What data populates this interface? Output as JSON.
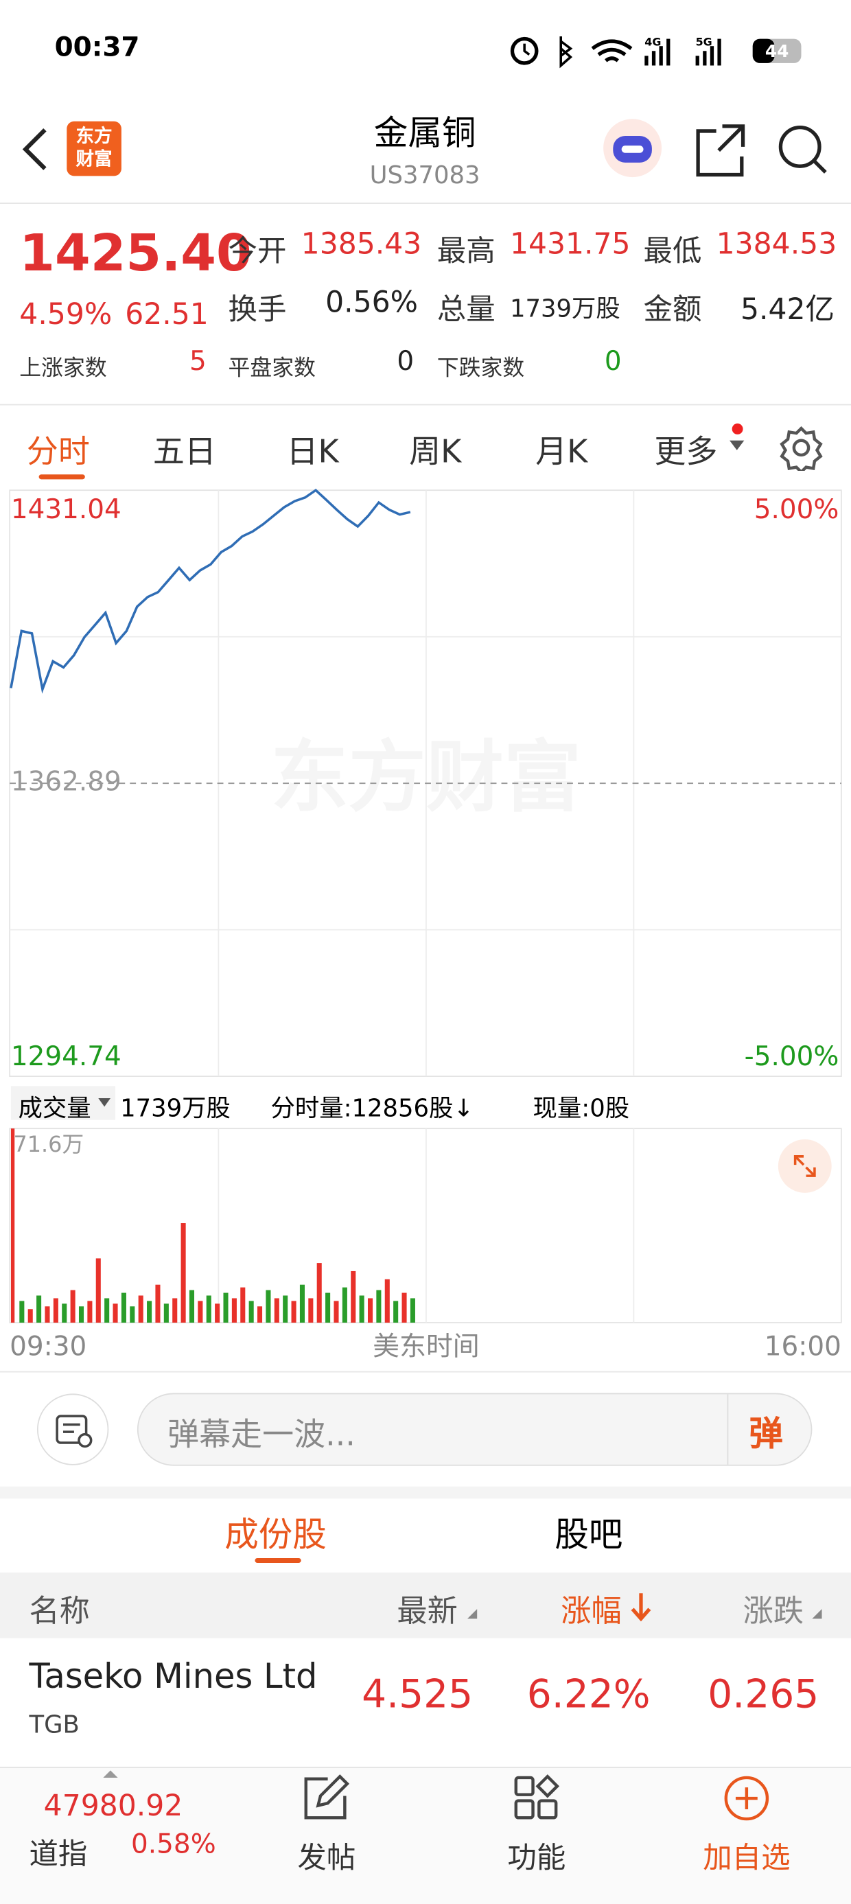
{
  "status_bar": {
    "time": "00:37",
    "battery": "44",
    "signal_labels": [
      "4G",
      "5G"
    ]
  },
  "header": {
    "logo": [
      "东方",
      "财富"
    ],
    "title": "金属铜",
    "code": "US37083"
  },
  "quote": {
    "price": "1425.40",
    "change_pct": "4.59%",
    "change": "62.51",
    "stats": [
      {
        "label": "今开",
        "value": "1385.43"
      },
      {
        "label": "最高",
        "value": "1431.75"
      },
      {
        "label": "最低",
        "value": "1384.53"
      },
      {
        "label": "换手",
        "value": "0.56%"
      },
      {
        "label": "总量",
        "value": "1739万股"
      },
      {
        "label": "金额",
        "value": "5.42亿"
      }
    ],
    "breadth": [
      {
        "label": "上涨家数",
        "value": "5"
      },
      {
        "label": "平盘家数",
        "value": "0"
      },
      {
        "label": "下跌家数",
        "value": "0"
      }
    ]
  },
  "tabs": [
    "分时",
    "五日",
    "日K",
    "周K",
    "月K",
    "更多"
  ],
  "chart_data": [
    {
      "type": "line",
      "color": "#2f6db5",
      "watermark": "东方财富",
      "values": [
        1385.04,
        1398.3,
        1397.74,
        1384.76,
        1391.25,
        1389.84,
        1392.66,
        1396.89,
        1399.72,
        1402.54,
        1395.48,
        1398.3,
        1403.95,
        1406.2,
        1407.33,
        1410.16,
        1412.98,
        1410.16,
        1412.4,
        1413.8,
        1416.65,
        1418.06,
        1420.3,
        1421.45,
        1423.14,
        1425.1,
        1427.1,
        1428.5,
        1429.35,
        1431.04,
        1428.8,
        1426.5,
        1424.3,
        1422.6,
        1425.1,
        1428.2,
        1426.5,
        1425.4,
        1425.96
      ],
      "ylim": [
        1294.74,
        1431.04
      ],
      "yticks": [
        1294.74,
        1362.89,
        1431.04
      ],
      "y2lim": [
        -5,
        5
      ],
      "y2ticks": [
        {
          "value": -5,
          "label": "-5.00%"
        },
        {
          "value": 5,
          "label": "5.00%"
        }
      ],
      "x_labels": [
        "09:30",
        "16:00"
      ],
      "x_title": "美东时间"
    },
    {
      "type": "bar",
      "title": "成交量",
      "total": "1739万股",
      "period_volume": "分时量:12856股↓",
      "current_volume": "现量:0股",
      "values": [
        71.6,
        8,
        5,
        10,
        6,
        9,
        7,
        12,
        6,
        8,
        23.7,
        9,
        7,
        11,
        6,
        10,
        8,
        14,
        7,
        9,
        36.7,
        12,
        8,
        10,
        7,
        11,
        9,
        13,
        8,
        6,
        12,
        9,
        10,
        8,
        14,
        9,
        22,
        11,
        8,
        13,
        19,
        10,
        9,
        12,
        16,
        8,
        11,
        9
      ],
      "colors": [
        "#e8312a",
        "#2a9d2a",
        "#e8312a",
        "#2a9d2a",
        "#e8312a",
        "#e8312a",
        "#2a9d2a",
        "#e8312a",
        "#2a9d2a",
        "#e8312a",
        "#e8312a",
        "#2a9d2a",
        "#e8312a",
        "#2a9d2a",
        "#2a9d2a",
        "#e8312a",
        "#2a9d2a",
        "#e8312a",
        "#2a9d2a",
        "#e8312a",
        "#e8312a",
        "#2a9d2a",
        "#e8312a",
        "#2a9d2a",
        "#e8312a",
        "#2a9d2a",
        "#e8312a",
        "#e8312a",
        "#2a9d2a",
        "#e8312a",
        "#2a9d2a",
        "#e8312a",
        "#2a9d2a",
        "#e8312a",
        "#2a9d2a",
        "#e8312a",
        "#e8312a",
        "#2a9d2a",
        "#e8312a",
        "#2a9d2a",
        "#e8312a",
        "#2a9d2a",
        "#e8312a",
        "#2a9d2a",
        "#e8312a",
        "#2a9d2a",
        "#e8312a",
        "#2a9d2a"
      ],
      "ylim": [
        0,
        71.6
      ],
      "yticks": [
        {
          "value": 71.6,
          "label": "71.6万"
        }
      ]
    }
  ],
  "danmu": {
    "placeholder": "弹幕走一波...",
    "button": "弹"
  },
  "section_tabs": [
    "成份股",
    "股吧"
  ],
  "table": {
    "columns": [
      "名称",
      "最新",
      "涨幅",
      "涨跌"
    ],
    "rows": [
      [
        "Taseko Mines Ltd",
        "TGB",
        "4.525",
        "6.22%",
        "0.265"
      ]
    ]
  },
  "bottom_bar": {
    "index_value": "47980.92",
    "index_name": "道指",
    "index_pct": "0.58%",
    "nav": [
      "发帖",
      "功能",
      "加自选"
    ]
  }
}
